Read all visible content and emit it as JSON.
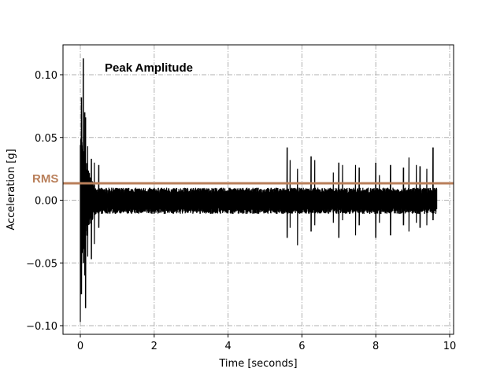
{
  "chart_data": {
    "type": "line",
    "title": "",
    "xlabel": "Time [seconds]",
    "ylabel": "Acceleration [g]",
    "xlim": [
      -0.45,
      10.1
    ],
    "ylim": [
      -0.107,
      0.123
    ],
    "xticks": [
      0,
      2,
      4,
      6,
      8,
      10
    ],
    "xtick_labels": [
      "0",
      "2",
      "4",
      "6",
      "8",
      "10"
    ],
    "yticks": [
      0.1,
      0.05,
      0.0,
      -0.05,
      -0.1
    ],
    "ytick_labels": [
      "0.10",
      "0.05",
      "0.00",
      "−0.05",
      "−0.10"
    ],
    "grid": true,
    "grid_style": "dash-dot",
    "series": [
      {
        "name": "acceleration",
        "color": "#000000",
        "duration_s": 9.65,
        "baseline_noise_band": [
          -0.011,
          0.01
        ],
        "peak_max": 0.113,
        "peak_min": -0.097,
        "spikes": [
          {
            "t": 0.0,
            "max": 0.044,
            "min": -0.097
          },
          {
            "t": 0.03,
            "max": 0.082,
            "min": -0.075
          },
          {
            "t": 0.08,
            "max": 0.113,
            "min": -0.05
          },
          {
            "t": 0.12,
            "max": 0.07,
            "min": -0.06
          },
          {
            "t": 0.14,
            "max": 0.066,
            "min": -0.086
          },
          {
            "t": 0.2,
            "max": 0.043,
            "min": -0.045
          },
          {
            "t": 0.3,
            "max": 0.033,
            "min": -0.047
          },
          {
            "t": 0.38,
            "max": 0.03,
            "min": -0.035
          },
          {
            "t": 0.5,
            "max": 0.028,
            "min": -0.022
          },
          {
            "t": 5.6,
            "max": 0.042,
            "min": -0.03
          },
          {
            "t": 5.68,
            "max": 0.032,
            "min": -0.022
          },
          {
            "t": 5.88,
            "max": 0.025,
            "min": -0.036
          },
          {
            "t": 6.25,
            "max": 0.035,
            "min": -0.025
          },
          {
            "t": 6.35,
            "max": 0.032,
            "min": -0.02
          },
          {
            "t": 6.85,
            "max": 0.022,
            "min": -0.018
          },
          {
            "t": 7.0,
            "max": 0.03,
            "min": -0.03
          },
          {
            "t": 7.1,
            "max": 0.028,
            "min": -0.016
          },
          {
            "t": 7.45,
            "max": 0.028,
            "min": -0.028
          },
          {
            "t": 7.55,
            "max": 0.026,
            "min": -0.02
          },
          {
            "t": 8.0,
            "max": 0.03,
            "min": -0.03
          },
          {
            "t": 8.1,
            "max": 0.02,
            "min": -0.018
          },
          {
            "t": 8.4,
            "max": 0.028,
            "min": -0.028
          },
          {
            "t": 8.75,
            "max": 0.026,
            "min": -0.02
          },
          {
            "t": 8.9,
            "max": 0.034,
            "min": -0.025
          },
          {
            "t": 9.1,
            "max": 0.028,
            "min": -0.018
          },
          {
            "t": 9.2,
            "max": 0.027,
            "min": -0.022
          },
          {
            "t": 9.38,
            "max": 0.025,
            "min": -0.02
          },
          {
            "t": 9.55,
            "max": 0.042,
            "min": -0.016
          }
        ]
      }
    ],
    "hlines": [
      {
        "name": "RMS",
        "y": 0.0135,
        "color": "#b97f5a"
      }
    ],
    "annotations": [
      {
        "text": "Peak Amplitude",
        "x": 0.65,
        "y": 0.105
      },
      {
        "text": "RMS",
        "position": "left of axes at RMS level",
        "color": "#b97f5a"
      }
    ],
    "legend": null
  },
  "labels": {
    "peak": "Peak Amplitude",
    "rms": "RMS",
    "xlabel": "Time [seconds]",
    "ylabel": "Acceleration [g]"
  },
  "colors": {
    "signal": "#000000",
    "rms": "#b97f5a",
    "grid": "#b0b0b0"
  }
}
